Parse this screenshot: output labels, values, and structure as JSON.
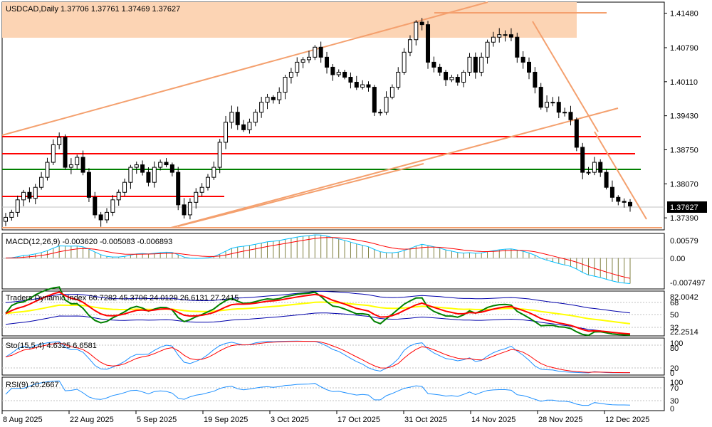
{
  "chart_data": {
    "type": "candlestick",
    "symbol_label": "USDCAD,Daily",
    "ohlc_label": "1.37706 1.37761 1.37469 1.37627",
    "last_price": "1.37627",
    "price_axis_ticks": [
      "1.41480",
      "1.40790",
      "1.40110",
      "1.39430",
      "1.38750",
      "1.38070",
      "1.37390"
    ],
    "price_range": [
      1.3715,
      1.417
    ],
    "x_labels": [
      "8 Aug 2025",
      "22 Aug 2025",
      "5 Sep 2025",
      "19 Sep 2025",
      "3 Oct 2025",
      "17 Oct 2025",
      "31 Oct 2025",
      "14 Nov 2025",
      "28 Nov 2025",
      "12 Dec 2025"
    ],
    "closes": [
      1.374,
      1.375,
      1.3775,
      1.379,
      1.3778,
      1.38,
      1.382,
      1.385,
      1.3885,
      1.39,
      1.384,
      1.3845,
      1.386,
      1.383,
      1.378,
      1.3745,
      1.3735,
      1.375,
      1.3775,
      1.379,
      1.381,
      1.384,
      1.3845,
      1.383,
      1.381,
      1.384,
      1.385,
      1.3845,
      1.383,
      1.3765,
      1.3745,
      1.377,
      1.379,
      1.38,
      1.382,
      1.384,
      1.389,
      1.393,
      1.395,
      1.3925,
      1.3915,
      1.393,
      1.395,
      1.397,
      1.398,
      1.3975,
      1.399,
      1.402,
      1.403,
      1.405,
      1.4055,
      1.406,
      1.408,
      1.406,
      1.404,
      1.4025,
      1.403,
      1.402,
      1.401,
      1.4,
      1.4005,
      1.4,
      1.395,
      1.395,
      1.398,
      1.4,
      1.403,
      1.407,
      1.4095,
      1.413,
      1.4125,
      1.405,
      1.404,
      1.403,
      1.4015,
      1.402,
      1.401,
      1.403,
      1.406,
      1.403,
      1.406,
      1.409,
      1.41,
      1.4105,
      1.4105,
      1.41,
      1.406,
      1.405,
      1.403,
      1.4,
      1.396,
      1.397,
      1.397,
      1.395,
      1.395,
      1.3935,
      1.388,
      1.383,
      1.383,
      1.385,
      1.383,
      1.38,
      1.378,
      1.3772,
      1.377,
      1.37627
    ],
    "macd": {
      "label": "MACD(12,26,9) -0.003620 -0.005083 -0.006893",
      "ticks": [
        "0.00579",
        "0.00",
        "-0.007497"
      ]
    },
    "tdi": {
      "label": "Traders Dynamic Index 66.7282 45.3706 24.0129 26.6131 27.2415",
      "ticks": [
        "82.0042",
        "68",
        "50",
        "32",
        "22.2514"
      ]
    },
    "stoch": {
      "label": "Sto(15,5,4) 4.6325 6.6581",
      "ticks": [
        "100",
        "80",
        "20",
        "0"
      ]
    },
    "rsi": {
      "label": "RSI(9) 20.2667",
      "ticks": [
        "100",
        "70",
        "30",
        "0"
      ]
    },
    "colors": {
      "up": "#ffffff",
      "down": "#000000",
      "red_line": "#ff0000",
      "green_line": "#008000",
      "trend_line": "#f4a06e",
      "zone": "#fcd4b4",
      "macd_signal": "#ff0000",
      "macd_line": "#00bfff",
      "tdi_yellow": "#ffff00",
      "tdi_green": "#008000",
      "tdi_red": "#ff0000",
      "tdi_blue": "#0000aa",
      "stoch_main": "#1e90ff",
      "stoch_signal": "#ff0000",
      "rsi": "#1e90ff"
    }
  }
}
